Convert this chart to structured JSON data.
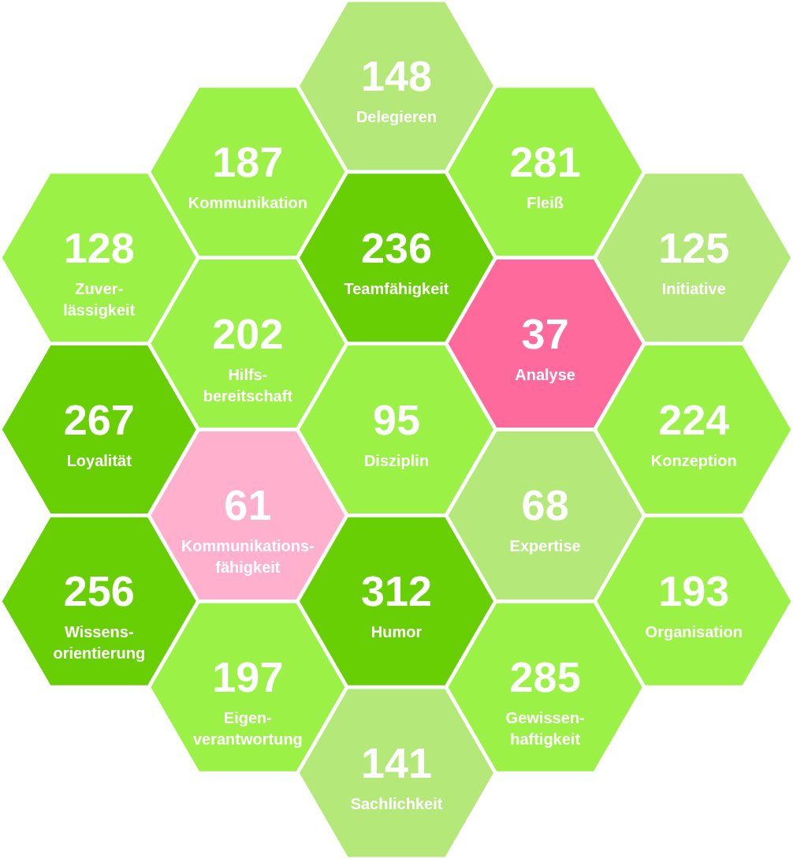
{
  "chart_data": {
    "type": "other",
    "categories": [
      "Zuver-\nlässigkeit",
      "Loyalität",
      "Wissens-\norientierung",
      "Kommunikation",
      "Hilfs-\nbereitschaft",
      "Kommunikations-\nfähigkeit",
      "Eigen-\nverantwortung",
      "Delegieren",
      "Teamfähigkeit",
      "Disziplin",
      "Humor",
      "Sachlichkeit",
      "Fleiß",
      "Analyse",
      "Expertise",
      "Gewissen-\nhaftigkeit",
      "Initiative",
      "Konzeption",
      "Organisation"
    ],
    "values": [
      128,
      267,
      256,
      187,
      202,
      61,
      197,
      148,
      236,
      95,
      312,
      141,
      281,
      37,
      68,
      285,
      125,
      224,
      193
    ],
    "colors": [
      "#9bf145",
      "#68cf05",
      "#68cf05",
      "#9bf145",
      "#9bf145",
      "#feb0cc",
      "#9bf145",
      "#b4e97a",
      "#68cf05",
      "#9bf145",
      "#68cf05",
      "#b4e97a",
      "#9bf145",
      "#fe6a9c",
      "#b4e97a",
      "#9bf145",
      "#b4e97a",
      "#9bf145",
      "#9bf145"
    ],
    "data_labels": true
  }
}
